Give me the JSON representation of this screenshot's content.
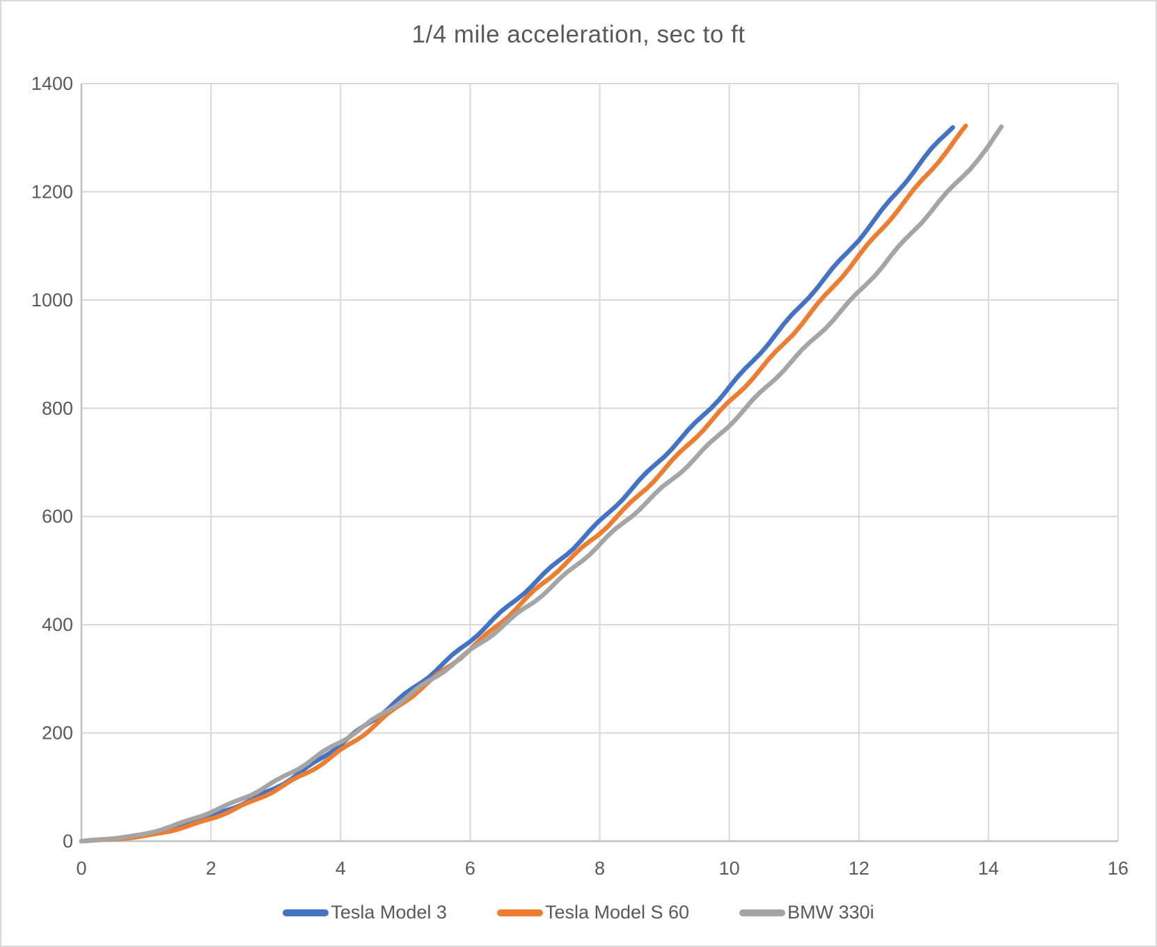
{
  "title": "1/4 mile acceleration, sec to ft",
  "colors": {
    "text": "#595959",
    "gridline": "#d9d9d9",
    "axis": "#bfbfbf",
    "frame": "#d9d9d9",
    "background": "#ffffff",
    "series_blue": "#4472C4",
    "series_orange": "#ED7D31",
    "series_gray": "#A5A5A5"
  },
  "chart_data": {
    "type": "line",
    "title": "1/4 mile acceleration, sec to ft",
    "xlabel": "",
    "ylabel": "",
    "xlim": [
      0,
      16
    ],
    "ylim": [
      0,
      1400
    ],
    "x_ticks": [
      0,
      2,
      4,
      6,
      8,
      10,
      12,
      14,
      16
    ],
    "y_ticks": [
      0,
      200,
      400,
      600,
      800,
      1000,
      1200,
      1400
    ],
    "grid": true,
    "legend_position": "bottom",
    "series": [
      {
        "name": "Tesla Model 3",
        "color": "#4472C4",
        "x": [
          0,
          1,
          2,
          3,
          4,
          5,
          6,
          7,
          8,
          9,
          10,
          11,
          12,
          13,
          13.45
        ],
        "y": [
          0,
          12,
          46,
          100,
          178,
          272,
          370,
          478,
          591,
          712,
          840,
          974,
          1114,
          1260,
          1320
        ]
      },
      {
        "name": "Tesla Model S 60",
        "color": "#ED7D31",
        "x": [
          0,
          1,
          2,
          3,
          4,
          5,
          6,
          7,
          8,
          9,
          10,
          11,
          12,
          13,
          13.65
        ],
        "y": [
          0,
          10,
          42,
          94,
          168,
          258,
          356,
          462,
          570,
          688,
          810,
          942,
          1080,
          1225,
          1320
        ]
      },
      {
        "name": "BMW 330i",
        "color": "#A5A5A5",
        "x": [
          0,
          1,
          2,
          3,
          4,
          5,
          6,
          7,
          8,
          9,
          10,
          11,
          12,
          13,
          14,
          14.2
        ],
        "y": [
          0,
          14,
          54,
          111,
          183,
          266,
          350,
          446,
          548,
          656,
          770,
          890,
          1016,
          1148,
          1284,
          1320
        ]
      }
    ]
  }
}
